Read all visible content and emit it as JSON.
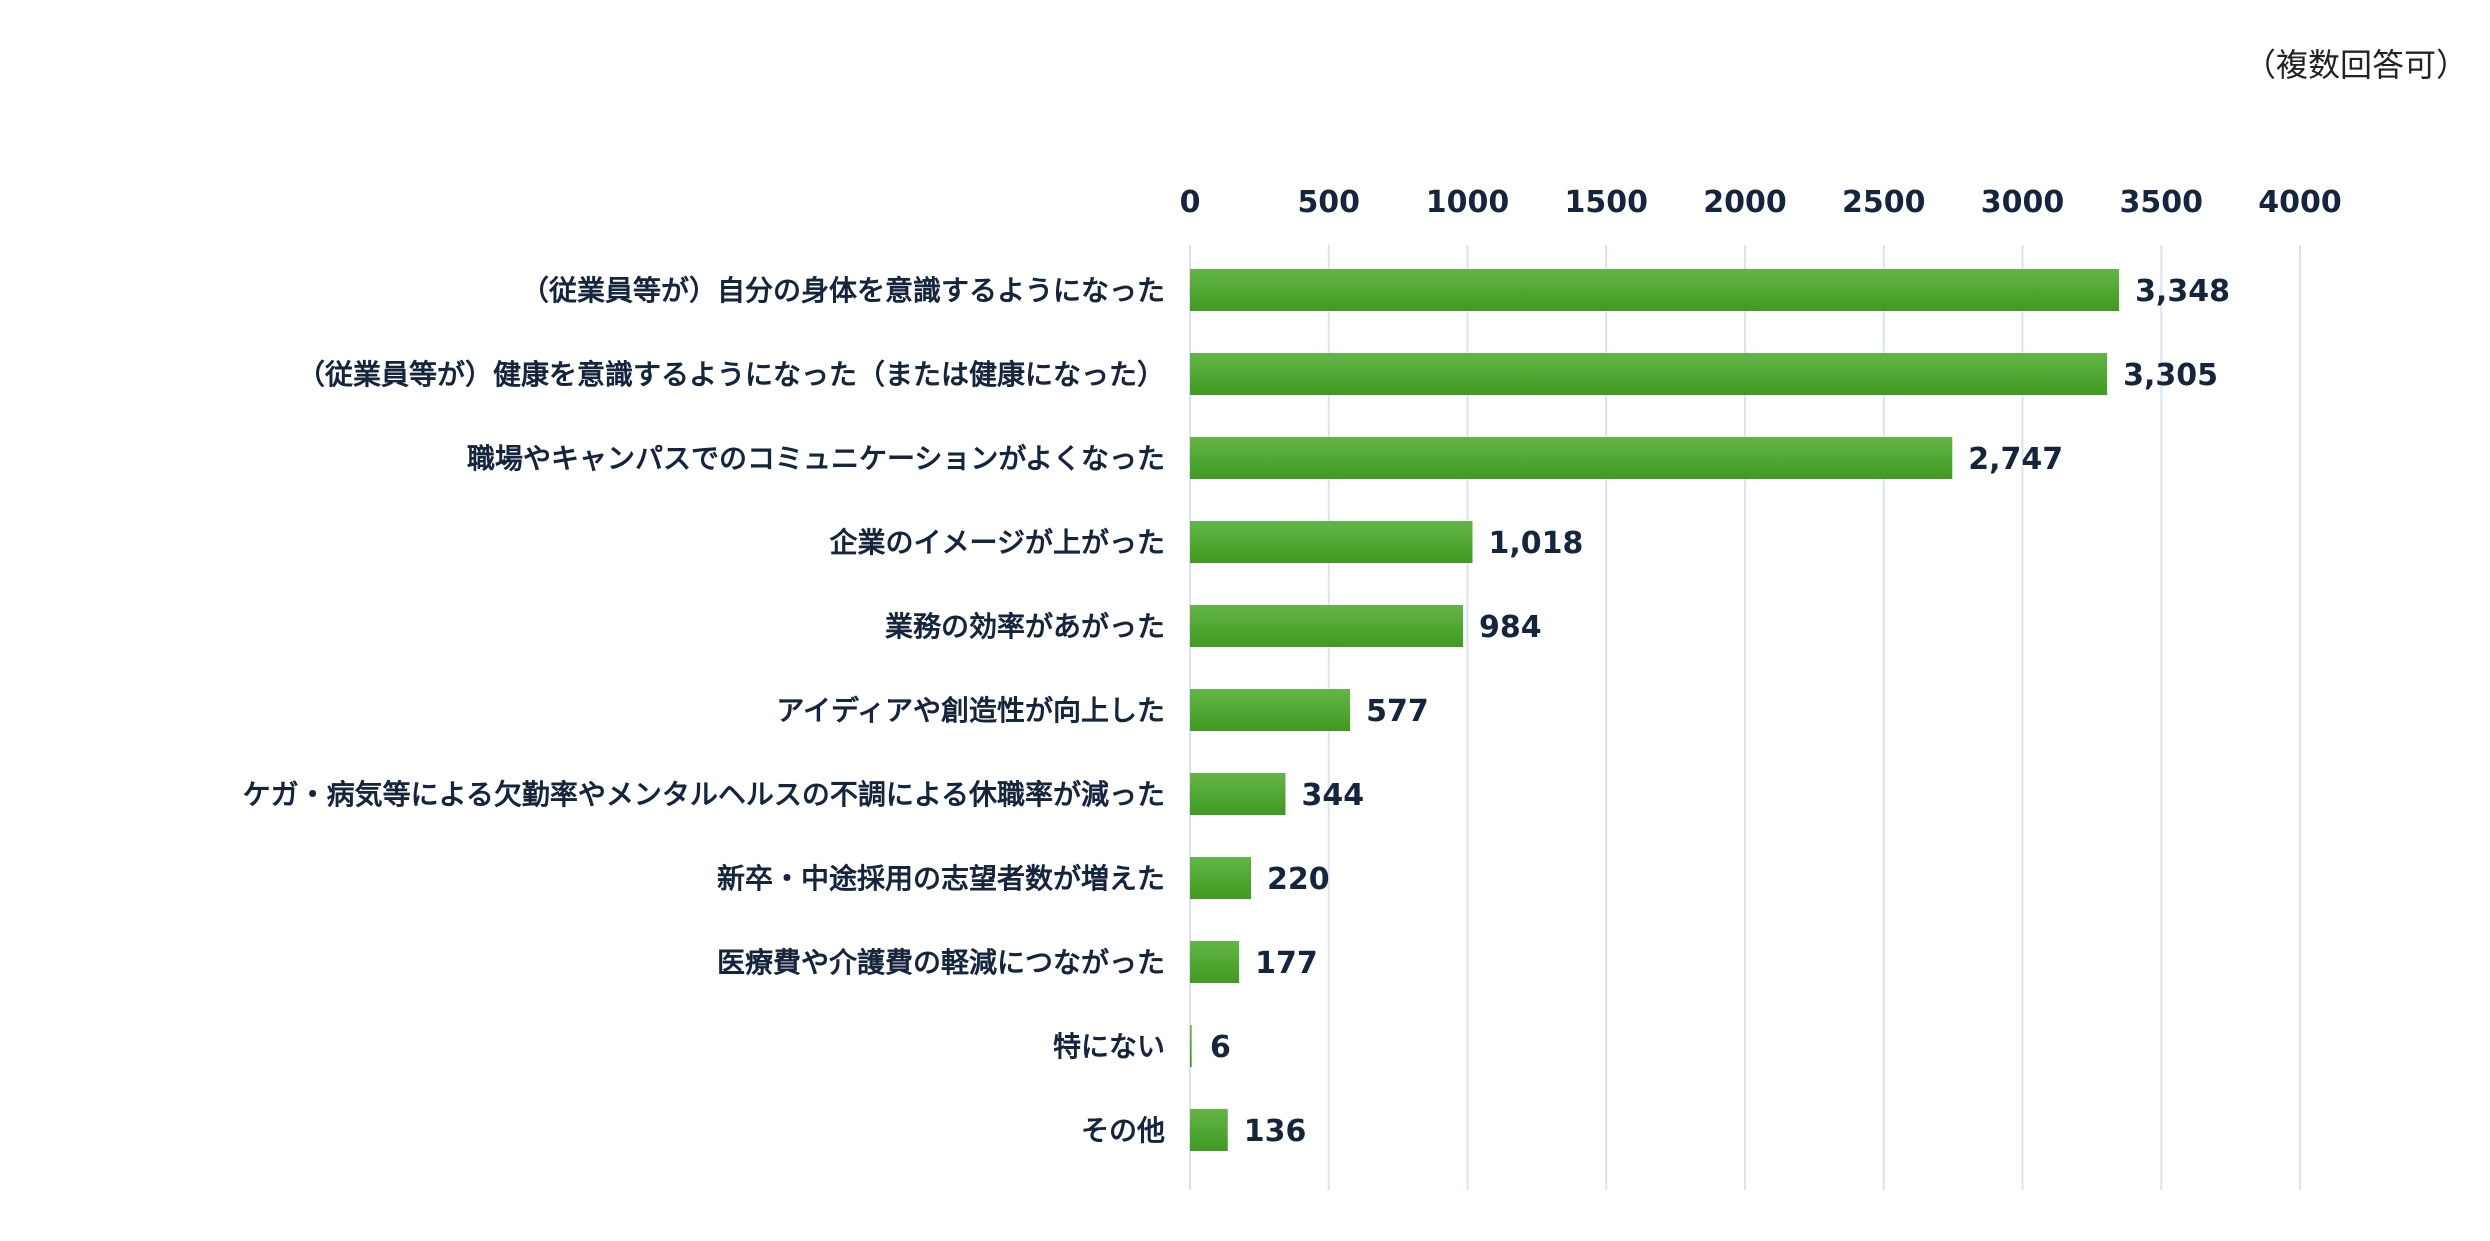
{
  "note": "（複数回答可）",
  "chart_data": {
    "type": "bar",
    "orientation": "horizontal",
    "title": "",
    "xlabel": "",
    "ylabel": "",
    "xlim": [
      0,
      4000
    ],
    "xticks": [
      0,
      500,
      1000,
      1500,
      2000,
      2500,
      3000,
      3500,
      4000
    ],
    "tick_labels": [
      "0",
      "500",
      "1000",
      "1500",
      "2000",
      "2500",
      "3000",
      "3500",
      "4000"
    ],
    "grid": true,
    "categories": [
      "（従業員等が）自分の身体を意識するようになった",
      "（従業員等が）健康を意識するようになった（または健康になった）",
      "職場やキャンパスでのコミュニケーションがよくなった",
      "企業のイメージが上がった",
      "業務の効率があがった",
      "アイディアや創造性が向上した",
      "ケガ・病気等による欠勤率やメンタルヘルスの不調による休職率が減った",
      "新卒・中途採用の志望者数が増えた",
      "医療費や介護費の軽減につながった",
      "特にない",
      "その他"
    ],
    "values": [
      3348,
      3305,
      2747,
      1018,
      984,
      577,
      344,
      220,
      177,
      6,
      136
    ],
    "value_labels": [
      "3,348",
      "3,305",
      "2,747",
      "1,018",
      "984",
      "577",
      "344",
      "220",
      "177",
      "6",
      "136"
    ],
    "colors": {
      "bar_light": "#64b548",
      "bar_dark": "#3f9a1f",
      "grid": "#d8e5f1",
      "text": "#14253d"
    }
  }
}
